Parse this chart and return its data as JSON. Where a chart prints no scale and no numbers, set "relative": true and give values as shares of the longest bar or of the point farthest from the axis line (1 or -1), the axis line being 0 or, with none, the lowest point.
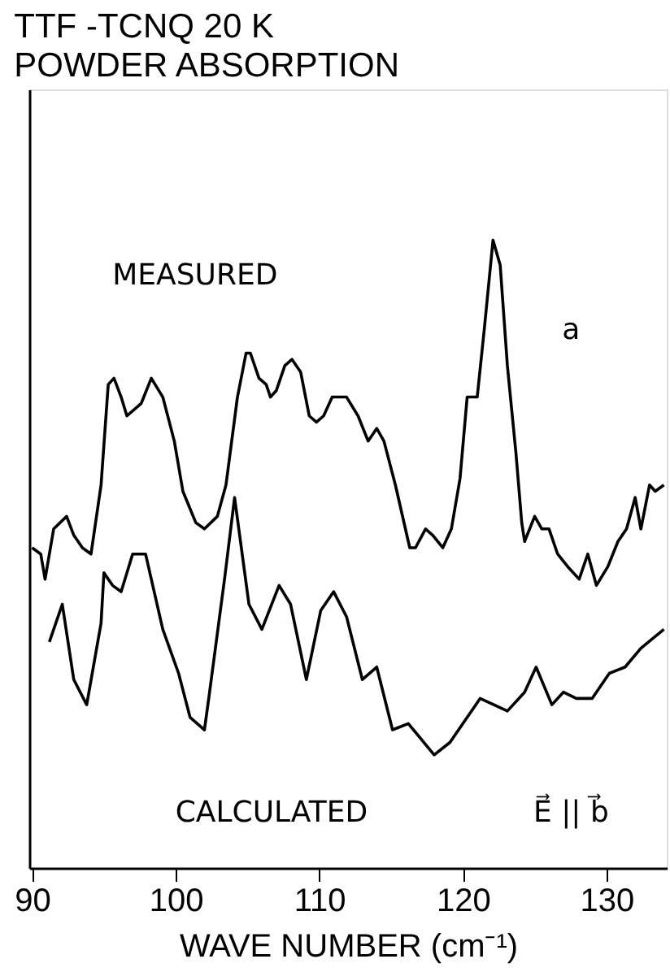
{
  "chart_data": {
    "type": "line",
    "title": "TTF -TCNQ  20 K",
    "subtitle": "POWDER ABSORPTION",
    "xlabel": "WAVE NUMBER (cm⁻¹)",
    "relative": true,
    "xlim": [
      89.8,
      134.2
    ],
    "xticks": [
      90,
      100,
      110,
      120,
      130
    ],
    "grid": false,
    "legend": false,
    "marker": "none",
    "line_style": "solid",
    "annotations": [
      "MEASURED",
      "a",
      "CALCULATED",
      "E⃗ || b⃗"
    ],
    "series": [
      {
        "color": "#000000",
        "x": [
          90.0,
          90.6,
          90.9,
          91.5,
          92.4,
          92.9,
          93.5,
          94.1,
          94.8,
          95.3,
          95.7,
          96.2,
          96.6,
          97.6,
          98.3,
          99.1,
          99.9,
          100.5,
          101.4,
          102.0,
          102.9,
          103.5,
          104.3,
          104.9,
          105.2,
          105.8,
          106.3,
          106.6,
          107.0,
          107.6,
          108.1,
          108.7,
          109.3,
          109.8,
          110.3,
          110.9,
          111.5,
          111.9,
          112.7,
          113.4,
          114.0,
          114.5,
          115.3,
          116.3,
          116.7,
          117.4,
          117.9,
          118.6,
          119.2,
          119.8,
          120.3,
          120.8,
          121.0,
          121.5,
          122.1,
          122.6,
          123.1,
          123.7,
          124.1,
          124.3,
          125.0,
          125.5,
          126.0,
          126.6,
          127.3,
          128.1,
          128.7,
          129.3,
          130.1,
          130.8,
          131.4,
          132.0,
          132.4,
          133.0,
          133.4,
          134.0
        ],
        "values": [
          0.51,
          0.5,
          0.46,
          0.54,
          0.56,
          0.53,
          0.51,
          0.5,
          0.61,
          0.77,
          0.78,
          0.75,
          0.72,
          0.74,
          0.78,
          0.75,
          0.68,
          0.6,
          0.55,
          0.54,
          0.56,
          0.61,
          0.75,
          0.82,
          0.82,
          0.78,
          0.77,
          0.75,
          0.76,
          0.8,
          0.81,
          0.79,
          0.72,
          0.71,
          0.72,
          0.75,
          0.75,
          0.75,
          0.72,
          0.68,
          0.7,
          0.68,
          0.61,
          0.51,
          0.51,
          0.54,
          0.53,
          0.51,
          0.54,
          0.62,
          0.75,
          0.75,
          0.75,
          0.86,
          1,
          0.96,
          0.8,
          0.66,
          0.55,
          0.52,
          0.56,
          0.54,
          0.54,
          0.5,
          0.48,
          0.46,
          0.5,
          0.45,
          0.48,
          0.52,
          0.54,
          0.59,
          0.54,
          0.61,
          0.6,
          0.61
        ]
      },
      {
        "color": "#000000",
        "x": [
          91.2,
          92.1,
          92.9,
          93.8,
          94.8,
          95.0,
          95.6,
          96.2,
          97.0,
          97.9,
          98.3,
          99.1,
          100.2,
          101.0,
          102.0,
          102.3,
          103.4,
          104.1,
          105.1,
          106.0,
          107.2,
          108.0,
          109.1,
          110.1,
          111.0,
          111.9,
          113.0,
          114.0,
          115.1,
          116.2,
          118.0,
          119.1,
          121.2,
          123.1,
          124.3,
          125.1,
          126.2,
          127.0,
          127.9,
          129.0,
          130.2,
          131.3,
          132.4,
          134.0
        ],
        "values": [
          0.36,
          0.42,
          0.3,
          0.26,
          0.39,
          0.47,
          0.45,
          0.44,
          0.5,
          0.5,
          0.46,
          0.38,
          0.31,
          0.24,
          0.22,
          0.27,
          0.46,
          0.59,
          0.42,
          0.38,
          0.45,
          0.42,
          0.3,
          0.41,
          0.44,
          0.4,
          0.3,
          0.32,
          0.22,
          0.23,
          0.18,
          0.2,
          0.27,
          0.25,
          0.28,
          0.32,
          0.26,
          0.28,
          0.27,
          0.27,
          0.31,
          0.32,
          0.35,
          0.38
        ]
      }
    ]
  }
}
